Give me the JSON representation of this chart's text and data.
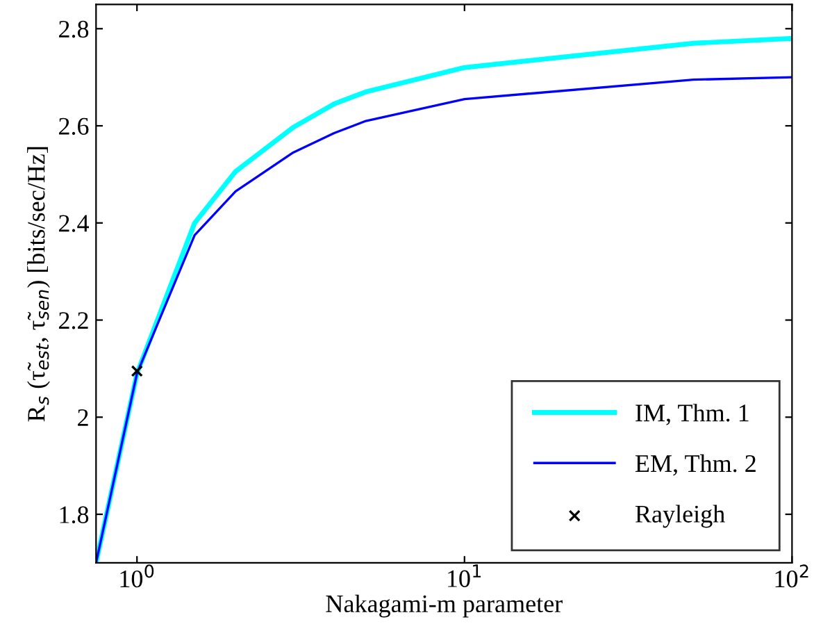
{
  "chart_data": {
    "type": "line",
    "xlabel": "Nakagami-m parameter",
    "ylabel": "R$_{s}$ (τ̃$_{est}$, τ̃$_{sen}$) [bits/sec/Hz]",
    "log": "x",
    "xlim": [
      0.75,
      100
    ],
    "ylim": [
      1.7,
      2.85
    ],
    "xticks": [
      {
        "value": 1,
        "label": "10$^{0}$"
      },
      {
        "value": 10,
        "label": "10$^{1}$"
      },
      {
        "value": 100,
        "label": "10$^{2}$"
      }
    ],
    "yticks": [
      1.8,
      2,
      2.2,
      2.4,
      2.6,
      2.8
    ],
    "grid": false,
    "legend": "bottom right",
    "series": [
      {
        "name": "IM, Thm. 1",
        "color": "#00ffff",
        "line_style": "solid",
        "marker": "none",
        "x": [
          0.75,
          1,
          1.5,
          2,
          3,
          4,
          5,
          10,
          50,
          100
        ],
        "values": [
          1.7,
          2.09,
          2.4,
          2.506,
          2.597,
          2.645,
          2.67,
          2.72,
          2.77,
          2.78
        ]
      },
      {
        "name": "EM, Thm. 2",
        "color": "#0000ff",
        "line_style": "solid",
        "marker": "none",
        "x": [
          0.75,
          1,
          1.5,
          2,
          3,
          4,
          5,
          10,
          50,
          100
        ],
        "values": [
          1.7,
          2.09,
          2.375,
          2.465,
          2.545,
          2.585,
          2.61,
          2.655,
          2.695,
          2.7
        ]
      },
      {
        "name": "Rayleigh",
        "type": "scatter",
        "color": "#000000",
        "marker": "cross",
        "x": [
          1
        ],
        "values": [
          2.095
        ]
      }
    ]
  }
}
